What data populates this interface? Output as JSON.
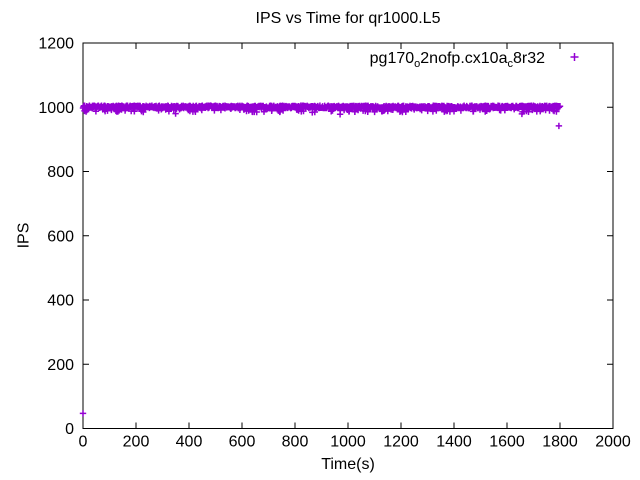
{
  "title": "IPS vs Time for qr1000.L5",
  "colors": {
    "series": "#9400D3",
    "axis": "#000000",
    "text": "#000000",
    "background": "#FFFFFF"
  },
  "chart_data": {
    "type": "scatter",
    "title": "IPS vs Time for qr1000.L5",
    "xlabel": "Time(s)",
    "ylabel": "IPS",
    "xlim": [
      0,
      2000
    ],
    "ylim": [
      0,
      1200
    ],
    "x_ticks": [
      0,
      200,
      400,
      600,
      800,
      1000,
      1200,
      1400,
      1600,
      1800,
      2000
    ],
    "y_ticks": [
      0,
      200,
      400,
      600,
      800,
      1000,
      1200
    ],
    "grid": "off",
    "tick_style": "inward-mirrored",
    "legend_position": "top-right-inside",
    "series": [
      {
        "name": "pg170_o2nofp.cx10a_c8r32",
        "name_display_parts": [
          {
            "text": "pg170",
            "sub": false
          },
          {
            "text": "o",
            "sub": true
          },
          {
            "text": "2nofp.cx10a",
            "sub": false
          },
          {
            "text": "c",
            "sub": true
          },
          {
            "text": "8r32",
            "sub": false
          }
        ],
        "marker": "plus",
        "color": "#9400D3",
        "summary": "Dense horizontal band of + markers at ~1000 IPS from t=0s to t=1800s, with light scatter just below the band and two isolated outliers",
        "dense_band": {
          "t_start": 0,
          "t_end": 1800,
          "t_step": 2,
          "ips_min": 997,
          "ips_max": 1005
        },
        "scatter_below_band": {
          "count": 170,
          "t_start": 0,
          "t_end": 1800,
          "ips_min": 985,
          "ips_max": 997
        },
        "sparse_low_points": {
          "count": 10,
          "t_start": 0,
          "t_end": 1800,
          "ips_min": 978,
          "ips_max": 988
        },
        "outlier_points": [
          {
            "t": 0,
            "ips": 47
          },
          {
            "t": 1796,
            "ips": 942
          }
        ]
      }
    ]
  }
}
